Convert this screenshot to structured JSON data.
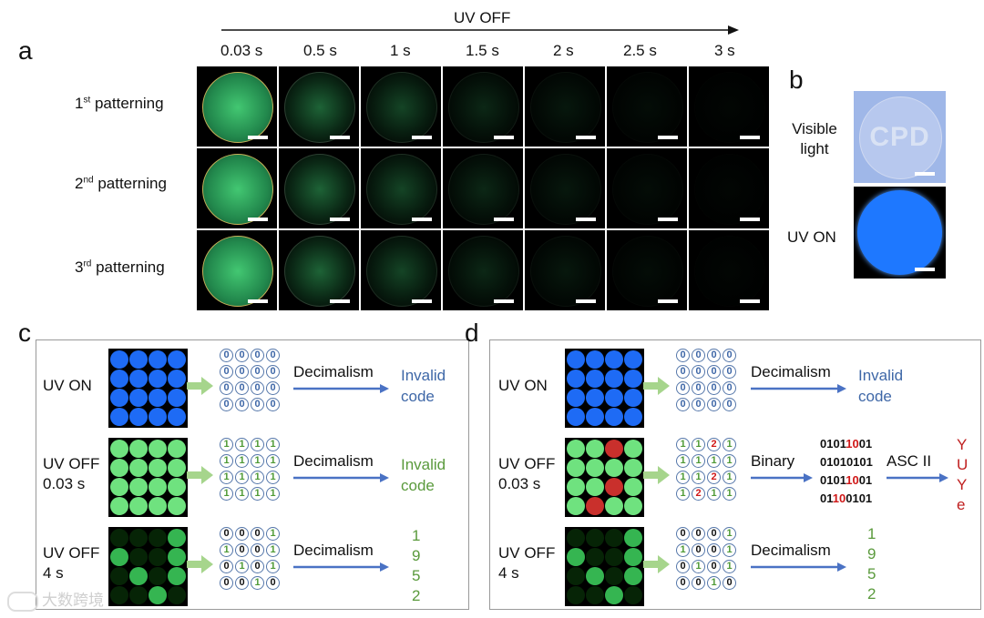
{
  "panel_a": {
    "letter": "a",
    "header": "UV OFF",
    "times": [
      "0.03 s",
      "0.5 s",
      "1 s",
      "1.5 s",
      "2 s",
      "2.5 s",
      "3 s"
    ],
    "rows": [
      {
        "prefix": "1",
        "sup": "st",
        "suffix": " patterning"
      },
      {
        "prefix": "2",
        "sup": "nd",
        "suffix": " patterning"
      },
      {
        "prefix": "3",
        "sup": "rd",
        "suffix": " patterning"
      }
    ],
    "glow_color": "#3ecf6e"
  },
  "panel_b": {
    "letter": "b",
    "visible_label_1": "Visible",
    "visible_label_2": "light",
    "uv_label": "UV ON",
    "sample_text": "CPD",
    "uv_color": "#1e78ff"
  },
  "panel_c": {
    "letter": "c",
    "rows": [
      {
        "label1": "UV ON",
        "label2": "",
        "op": "Decimalism",
        "result": [
          "Invalid",
          "code"
        ],
        "result_color": "blue",
        "bits": [
          [
            "0",
            "0",
            "0",
            "0"
          ],
          [
            "0",
            "0",
            "0",
            "0"
          ],
          [
            "0",
            "0",
            "0",
            "0"
          ],
          [
            "0",
            "0",
            "0",
            "0"
          ]
        ]
      },
      {
        "label1": "UV OFF",
        "label2": "0.03 s",
        "op": "Decimalism",
        "result": [
          "Invalid",
          "code"
        ],
        "result_color": "green",
        "bits": [
          [
            "1",
            "1",
            "1",
            "1"
          ],
          [
            "1",
            "1",
            "1",
            "1"
          ],
          [
            "1",
            "1",
            "1",
            "1"
          ],
          [
            "1",
            "1",
            "1",
            "1"
          ]
        ]
      },
      {
        "label1": "UV OFF",
        "label2": "4 s",
        "op": "Decimalism",
        "result": [
          "1",
          "9",
          "5",
          "2"
        ],
        "result_color": "green",
        "bits": [
          [
            "0",
            "0",
            "0",
            "1"
          ],
          [
            "1",
            "0",
            "0",
            "1"
          ],
          [
            "0",
            "1",
            "0",
            "1"
          ],
          [
            "0",
            "0",
            "1",
            "0"
          ]
        ]
      }
    ]
  },
  "panel_d": {
    "letter": "d",
    "rows": [
      {
        "label1": "UV ON",
        "label2": "",
        "op": "Decimalism",
        "result": [
          "Invalid",
          "code"
        ],
        "bits": [
          [
            "0",
            "0",
            "0",
            "0"
          ],
          [
            "0",
            "0",
            "0",
            "0"
          ],
          [
            "0",
            "0",
            "0",
            "0"
          ],
          [
            "0",
            "0",
            "0",
            "0"
          ]
        ]
      },
      {
        "label1": "UV OFF",
        "label2": "0.03 s",
        "op": "Binary",
        "op2": "ASC II",
        "binary": [
          "01011001",
          "01010101",
          "01011001",
          "01100101"
        ],
        "result": [
          "Y",
          "U",
          "Y",
          "e"
        ],
        "bits": [
          [
            "1",
            "1",
            "2",
            "1"
          ],
          [
            "1",
            "1",
            "1",
            "1"
          ],
          [
            "1",
            "1",
            "2",
            "1"
          ],
          [
            "1",
            "2",
            "1",
            "1"
          ]
        ]
      },
      {
        "label1": "UV OFF",
        "label2": "4 s",
        "op": "Decimalism",
        "result": [
          "1",
          "9",
          "5",
          "2"
        ],
        "bits": [
          [
            "0",
            "0",
            "0",
            "1"
          ],
          [
            "1",
            "0",
            "0",
            "1"
          ],
          [
            "0",
            "1",
            "0",
            "1"
          ],
          [
            "0",
            "0",
            "1",
            "0"
          ]
        ]
      }
    ]
  },
  "watermark": "大数跨境"
}
